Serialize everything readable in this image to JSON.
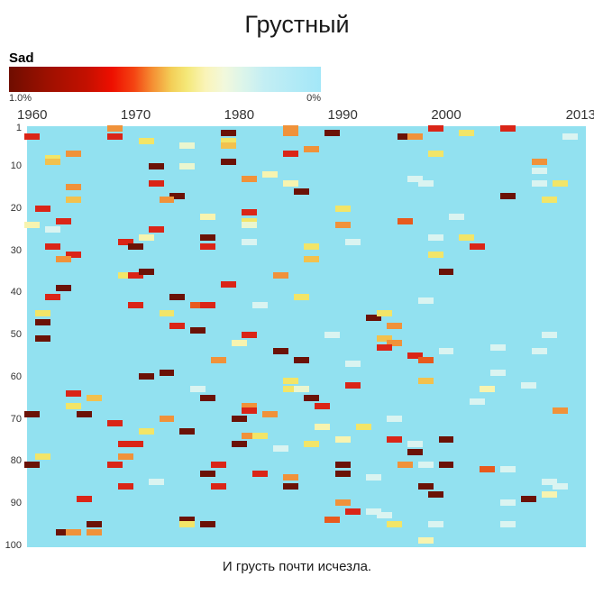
{
  "title": "Грустный",
  "caption": "И грусть почти исчезла.",
  "legend": {
    "label": "Sad",
    "max_label": "1.0%",
    "min_label": "0%",
    "gradient_stops": [
      "#6f0d00 0%",
      "#9c1000 12%",
      "#c41000 25%",
      "#ee0f00 33%",
      "#f44312 40%",
      "#f58f33 46%",
      "#f3ce57 52%",
      "#f4e878 57%",
      "#faf4b8 63%",
      "#f2f8dc 69%",
      "#dcf5ea 75%",
      "#c3eef4 82%",
      "#a3e7f8 100%"
    ]
  },
  "chart_data": {
    "type": "heatmap",
    "title": "Грустный",
    "legend_title": "Sad",
    "value_max": "1.0%",
    "value_min": "0%",
    "x_range": [
      1960,
      2013
    ],
    "y_range": [
      1,
      100
    ],
    "x_tick_years": [
      1960,
      1970,
      1980,
      1990,
      2000,
      2013
    ],
    "x_tick_labels": [
      "1960",
      "1970",
      "1980",
      "1990",
      "2000",
      "2013"
    ],
    "y_tick_labels": [
      "1",
      "10",
      "20",
      "30",
      "40",
      "50",
      "60",
      "70",
      "80",
      "90",
      "100"
    ],
    "background_color": "#92e1f0",
    "background_value": "0%",
    "palette": {
      "darkred": "#6b1206",
      "red": "#da2517",
      "orangered": "#e85a1d",
      "orange": "#f0923a",
      "gold": "#f2c14e",
      "yellow": "#f2e568",
      "paleyellow": "#f7f4b0",
      "palegreen": "#eaf6cf",
      "palecyan": "#daf4f1"
    },
    "cells": [
      [
        1968,
        1,
        "orange"
      ],
      [
        1960,
        3,
        "red"
      ],
      [
        1968,
        3,
        "red"
      ],
      [
        1971,
        4,
        "yellow"
      ],
      [
        1975,
        5,
        "palegreen"
      ],
      [
        1964,
        7,
        "orange"
      ],
      [
        1962,
        8,
        "yellow"
      ],
      [
        1962,
        9,
        "gold"
      ],
      [
        1972,
        10,
        "darkred"
      ],
      [
        1975,
        10,
        "palegreen"
      ],
      [
        1972,
        14,
        "red"
      ],
      [
        1964,
        15,
        "orange"
      ],
      [
        1974,
        17,
        "darkred"
      ],
      [
        1973,
        18,
        "orange"
      ],
      [
        1964,
        18,
        "gold"
      ],
      [
        1961,
        20,
        "red"
      ],
      [
        1963,
        23,
        "red"
      ],
      [
        1960,
        24,
        "paleyellow"
      ],
      [
        1977,
        22,
        "paleyellow"
      ],
      [
        1962,
        25,
        "palecyan"
      ],
      [
        1972,
        25,
        "red"
      ],
      [
        1971,
        27,
        "paleyellow"
      ],
      [
        1977,
        27,
        "darkred"
      ],
      [
        1969,
        28,
        "red"
      ],
      [
        1970,
        29,
        "darkred"
      ],
      [
        1977,
        29,
        "red"
      ],
      [
        1962,
        29,
        "red"
      ],
      [
        1964,
        31,
        "red"
      ],
      [
        1963,
        32,
        "orange"
      ],
      [
        1979,
        2,
        "darkred"
      ],
      [
        1985,
        1,
        "orange"
      ],
      [
        1985,
        2,
        "orange"
      ],
      [
        1989,
        2,
        "darkred"
      ],
      [
        1996,
        3,
        "darkred"
      ],
      [
        1997,
        3,
        "orange"
      ],
      [
        1979,
        4,
        "yellow"
      ],
      [
        1979,
        5,
        "gold"
      ],
      [
        1987,
        6,
        "orange"
      ],
      [
        1985,
        7,
        "red"
      ],
      [
        1979,
        9,
        "darkred"
      ],
      [
        1983,
        12,
        "paleyellow"
      ],
      [
        1981,
        13,
        "orange"
      ],
      [
        1997,
        13,
        "palecyan"
      ],
      [
        1985,
        14,
        "paleyellow"
      ],
      [
        1986,
        16,
        "darkred"
      ],
      [
        1990,
        20,
        "yellow"
      ],
      [
        1981,
        21,
        "red"
      ],
      [
        1981,
        23,
        "yellow"
      ],
      [
        1981,
        24,
        "palegreen"
      ],
      [
        1990,
        24,
        "orange"
      ],
      [
        1996,
        23,
        "orangered"
      ],
      [
        1981,
        28,
        "palecyan"
      ],
      [
        1987,
        29,
        "yellow"
      ],
      [
        1991,
        28,
        "palecyan"
      ],
      [
        1987,
        32,
        "gold"
      ],
      [
        1999,
        1,
        "red"
      ],
      [
        2002,
        2,
        "yellow"
      ],
      [
        2006,
        1,
        "red"
      ],
      [
        2012,
        3,
        "palecyan"
      ],
      [
        1999,
        7,
        "yellow"
      ],
      [
        2009,
        9,
        "orange"
      ],
      [
        2009,
        11,
        "palecyan"
      ],
      [
        2009,
        14,
        "palecyan"
      ],
      [
        2011,
        14,
        "yellow"
      ],
      [
        1998,
        14,
        "palecyan"
      ],
      [
        2006,
        17,
        "darkred"
      ],
      [
        2010,
        18,
        "yellow"
      ],
      [
        2001,
        22,
        "palecyan"
      ],
      [
        2002,
        27,
        "yellow"
      ],
      [
        1999,
        27,
        "palecyan"
      ],
      [
        2003,
        29,
        "red"
      ],
      [
        1999,
        31,
        "yellow"
      ],
      [
        1969,
        36,
        "yellow"
      ],
      [
        1970,
        36,
        "red"
      ],
      [
        1971,
        35,
        "darkred"
      ],
      [
        1963,
        39,
        "darkred"
      ],
      [
        1962,
        41,
        "red"
      ],
      [
        1974,
        41,
        "darkred"
      ],
      [
        1970,
        43,
        "red"
      ],
      [
        1976,
        43,
        "orangered"
      ],
      [
        1977,
        43,
        "red"
      ],
      [
        1973,
        45,
        "yellow"
      ],
      [
        1961,
        45,
        "yellow"
      ],
      [
        1961,
        47,
        "darkred"
      ],
      [
        1974,
        48,
        "red"
      ],
      [
        1976,
        49,
        "darkred"
      ],
      [
        1961,
        51,
        "darkred"
      ],
      [
        1978,
        56,
        "orange"
      ],
      [
        1973,
        59,
        "darkred"
      ],
      [
        1971,
        60,
        "darkred"
      ],
      [
        1964,
        64,
        "red"
      ],
      [
        1966,
        65,
        "gold"
      ],
      [
        1976,
        63,
        "palecyan"
      ],
      [
        1977,
        65,
        "darkred"
      ],
      [
        1984,
        36,
        "orange"
      ],
      [
        1979,
        38,
        "red"
      ],
      [
        1986,
        41,
        "yellow"
      ],
      [
        1982,
        43,
        "palecyan"
      ],
      [
        1993,
        46,
        "darkred"
      ],
      [
        1994,
        45,
        "yellow"
      ],
      [
        1995,
        48,
        "orange"
      ],
      [
        1981,
        50,
        "red"
      ],
      [
        1989,
        50,
        "palecyan"
      ],
      [
        1994,
        51,
        "gold"
      ],
      [
        1995,
        52,
        "orange"
      ],
      [
        1994,
        53,
        "red"
      ],
      [
        1980,
        52,
        "paleyellow"
      ],
      [
        1984,
        54,
        "darkred"
      ],
      [
        1997,
        55,
        "red"
      ],
      [
        1986,
        56,
        "darkred"
      ],
      [
        1991,
        57,
        "palecyan"
      ],
      [
        1985,
        61,
        "yellow"
      ],
      [
        1991,
        62,
        "red"
      ],
      [
        1985,
        63,
        "yellow"
      ],
      [
        1986,
        63,
        "palegreen"
      ],
      [
        1987,
        65,
        "darkred"
      ],
      [
        1988,
        67,
        "red"
      ],
      [
        1981,
        67,
        "orange"
      ],
      [
        2000,
        35,
        "darkred"
      ],
      [
        1998,
        42,
        "palecyan"
      ],
      [
        2010,
        50,
        "palecyan"
      ],
      [
        2005,
        53,
        "palecyan"
      ],
      [
        2009,
        54,
        "palecyan"
      ],
      [
        2000,
        54,
        "palecyan"
      ],
      [
        1998,
        56,
        "orangered"
      ],
      [
        2005,
        59,
        "palecyan"
      ],
      [
        1998,
        61,
        "gold"
      ],
      [
        2008,
        62,
        "palecyan"
      ],
      [
        2004,
        63,
        "paleyellow"
      ],
      [
        2003,
        66,
        "palecyan"
      ],
      [
        1964,
        67,
        "yellow"
      ],
      [
        1965,
        69,
        "darkred"
      ],
      [
        1960,
        69,
        "darkred"
      ],
      [
        1973,
        70,
        "orange"
      ],
      [
        1968,
        71,
        "red"
      ],
      [
        1971,
        73,
        "yellow"
      ],
      [
        1975,
        73,
        "darkred"
      ],
      [
        1969,
        76,
        "red"
      ],
      [
        1970,
        76,
        "red"
      ],
      [
        1961,
        79,
        "yellow"
      ],
      [
        1969,
        79,
        "orange"
      ],
      [
        1960,
        81,
        "darkred"
      ],
      [
        1968,
        81,
        "red"
      ],
      [
        1978,
        81,
        "red"
      ],
      [
        1977,
        83,
        "darkred"
      ],
      [
        1972,
        85,
        "palecyan"
      ],
      [
        1969,
        86,
        "red"
      ],
      [
        1978,
        86,
        "red"
      ],
      [
        1965,
        89,
        "red"
      ],
      [
        1966,
        95,
        "darkred"
      ],
      [
        1975,
        94,
        "darkred"
      ],
      [
        1975,
        95,
        "yellow"
      ],
      [
        1977,
        95,
        "darkred"
      ],
      [
        1963,
        97,
        "darkred"
      ],
      [
        1964,
        97,
        "orange"
      ],
      [
        1966,
        97,
        "orange"
      ],
      [
        1981,
        68,
        "red"
      ],
      [
        1980,
        70,
        "darkred"
      ],
      [
        1983,
        69,
        "orange"
      ],
      [
        1995,
        70,
        "palecyan"
      ],
      [
        1988,
        72,
        "paleyellow"
      ],
      [
        1992,
        72,
        "yellow"
      ],
      [
        1981,
        74,
        "orange"
      ],
      [
        1982,
        74,
        "yellow"
      ],
      [
        1980,
        76,
        "darkred"
      ],
      [
        1987,
        76,
        "yellow"
      ],
      [
        1990,
        75,
        "paleyellow"
      ],
      [
        1995,
        75,
        "red"
      ],
      [
        1997,
        76,
        "palecyan"
      ],
      [
        1984,
        77,
        "palecyan"
      ],
      [
        1997,
        78,
        "darkred"
      ],
      [
        1990,
        81,
        "darkred"
      ],
      [
        1990,
        83,
        "darkred"
      ],
      [
        1982,
        83,
        "red"
      ],
      [
        1985,
        84,
        "orange"
      ],
      [
        1993,
        84,
        "palecyan"
      ],
      [
        1996,
        81,
        "orange"
      ],
      [
        1985,
        86,
        "darkred"
      ],
      [
        1990,
        90,
        "orange"
      ],
      [
        1991,
        92,
        "red"
      ],
      [
        1993,
        92,
        "palecyan"
      ],
      [
        1994,
        93,
        "palecyan"
      ],
      [
        1989,
        94,
        "orangered"
      ],
      [
        1995,
        95,
        "yellow"
      ],
      [
        2011,
        68,
        "orange"
      ],
      [
        2000,
        75,
        "darkred"
      ],
      [
        1998,
        81,
        "palecyan"
      ],
      [
        2000,
        81,
        "darkred"
      ],
      [
        2004,
        82,
        "orangered"
      ],
      [
        2006,
        82,
        "palecyan"
      ],
      [
        1998,
        86,
        "darkred"
      ],
      [
        1999,
        88,
        "darkred"
      ],
      [
        2010,
        85,
        "palecyan"
      ],
      [
        2011,
        86,
        "palecyan"
      ],
      [
        2010,
        88,
        "paleyellow"
      ],
      [
        2006,
        90,
        "palecyan"
      ],
      [
        2008,
        89,
        "darkred"
      ],
      [
        2006,
        95,
        "palecyan"
      ],
      [
        1999,
        95,
        "palecyan"
      ],
      [
        1998,
        99,
        "paleyellow"
      ]
    ]
  }
}
